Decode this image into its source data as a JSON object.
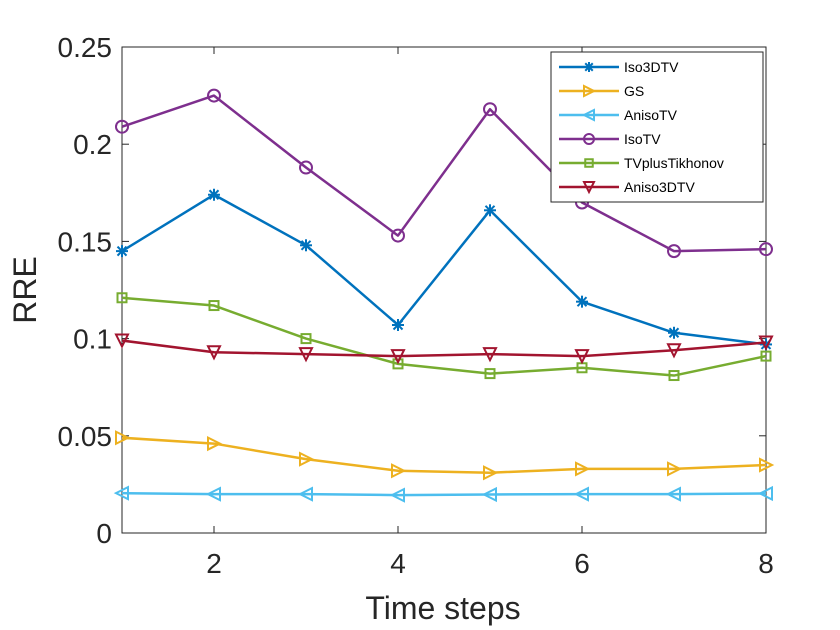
{
  "chart_data": {
    "type": "line",
    "title": "",
    "xlabel": "Time steps",
    "ylabel": "RRE",
    "xlim": [
      1,
      8
    ],
    "ylim": [
      0,
      0.25
    ],
    "xticks": [
      2,
      4,
      6,
      8
    ],
    "yticks": [
      0,
      0.05,
      0.1,
      0.15,
      0.2,
      0.25
    ],
    "ytick_labels": [
      "0",
      "0.05",
      "0.1",
      "0.15",
      "0.2",
      "0.25"
    ],
    "legend_position": "top-right",
    "x": [
      1,
      2,
      3,
      4,
      5,
      6,
      7,
      8
    ],
    "series": [
      {
        "name": "Iso3DTV",
        "color": "#0072BD",
        "marker": "asterisk",
        "values": [
          0.145,
          0.174,
          0.148,
          0.107,
          0.166,
          0.119,
          0.103,
          0.097
        ]
      },
      {
        "name": "GS",
        "color": "#EDB120",
        "marker": "triangle-right",
        "values": [
          0.049,
          0.046,
          0.038,
          0.032,
          0.031,
          0.033,
          0.033,
          0.035
        ]
      },
      {
        "name": "AnisoTV",
        "color": "#4DBEEE",
        "marker": "triangle-left",
        "values": [
          0.0205,
          0.02,
          0.02,
          0.0195,
          0.0198,
          0.02,
          0.02,
          0.0203
        ]
      },
      {
        "name": "IsoTV",
        "color": "#7E2F8E",
        "marker": "circle",
        "values": [
          0.209,
          0.225,
          0.188,
          0.153,
          0.218,
          0.17,
          0.145,
          0.146
        ]
      },
      {
        "name": "TVplusTikhonov",
        "color": "#77AC30",
        "marker": "square",
        "values": [
          0.121,
          0.117,
          0.1,
          0.087,
          0.082,
          0.085,
          0.081,
          0.091
        ]
      },
      {
        "name": "Aniso3DTV",
        "color": "#A2142F",
        "marker": "triangle-down",
        "values": [
          0.099,
          0.093,
          0.092,
          0.091,
          0.092,
          0.091,
          0.094,
          0.098
        ]
      }
    ]
  }
}
